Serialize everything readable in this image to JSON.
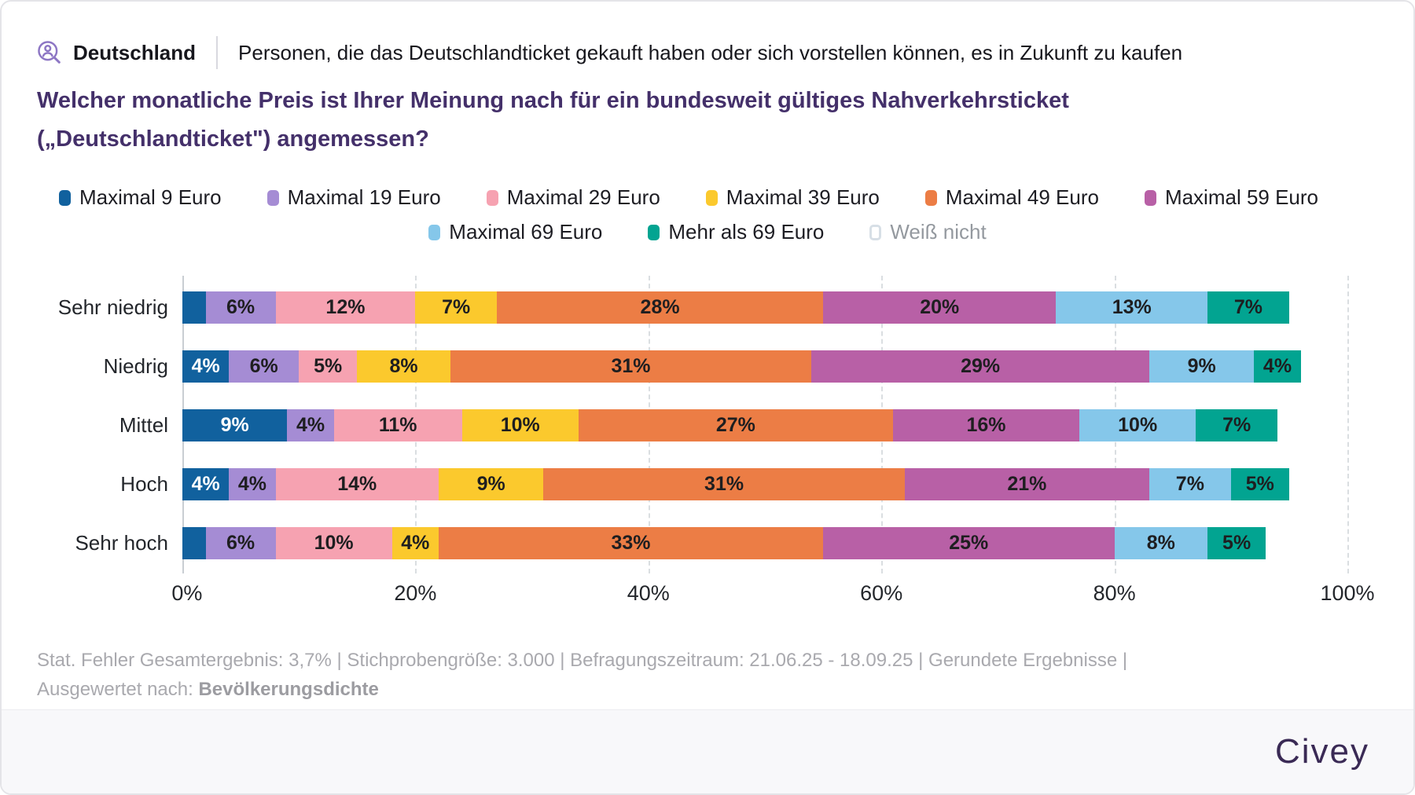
{
  "header": {
    "region": "Deutschland",
    "condition": "Personen, die das Deutschlandticket gekauft haben oder sich vorstellen können, es in Zukunft zu kaufen",
    "question": "Welcher monatliche Preis ist Ihrer Meinung nach für ein bundesweit gültiges Nahverkehrsticket („Deutschlandticket\") angemessen?",
    "audience_icon": "person-magnifier-icon",
    "icon_color": "#8d76c4"
  },
  "chart_data": {
    "type": "bar",
    "stacked": true,
    "orientation": "horizontal",
    "categories": [
      "Sehr niedrig",
      "Niedrig",
      "Mittel",
      "Hoch",
      "Sehr hoch"
    ],
    "series": [
      {
        "name": "Maximal 9 Euro",
        "color": "#11619E",
        "label_color": "#ffffff",
        "values": [
          2,
          4,
          9,
          4,
          2
        ]
      },
      {
        "name": "Maximal 19 Euro",
        "color": "#A58CD4",
        "label_color": "#1e1e20",
        "values": [
          6,
          6,
          4,
          4,
          6
        ]
      },
      {
        "name": "Maximal 29 Euro",
        "color": "#F6A2B1",
        "label_color": "#1e1e20",
        "values": [
          12,
          5,
          11,
          14,
          10
        ]
      },
      {
        "name": "Maximal 39 Euro",
        "color": "#FBC92D",
        "label_color": "#1e1e20",
        "values": [
          7,
          8,
          10,
          9,
          4
        ]
      },
      {
        "name": "Maximal 49 Euro",
        "color": "#EC7D45",
        "label_color": "#1e1e20",
        "values": [
          28,
          31,
          27,
          31,
          33
        ]
      },
      {
        "name": "Maximal 59 Euro",
        "color": "#B860A6",
        "label_color": "#1e1e20",
        "values": [
          20,
          29,
          16,
          21,
          25
        ]
      },
      {
        "name": "Maximal 69 Euro",
        "color": "#85C7EA",
        "label_color": "#1e1e20",
        "values": [
          13,
          9,
          10,
          7,
          8
        ]
      },
      {
        "name": "Mehr als 69 Euro",
        "color": "#02A491",
        "label_color": "#1e1e20",
        "values": [
          7,
          4,
          7,
          5,
          5
        ]
      },
      {
        "name": "Weiß nicht",
        "color": "#FFFFFF",
        "label_color": "#94999f",
        "values": [
          5,
          4,
          6,
          5,
          7
        ]
      }
    ],
    "x_ticks": [
      0,
      20,
      40,
      60,
      80,
      100
    ],
    "x_tick_suffix": "%",
    "xlim": [
      0,
      100
    ],
    "grid": "dashed-vertical",
    "legend_position": "top",
    "legend_rows": [
      6,
      3
    ],
    "label_threshold": 4,
    "value_suffix": "%"
  },
  "legend_style": {
    "knockout_series": "Weiß nicht",
    "knockout_swatch_border": "#d7dfe6",
    "knockout_text_color": "#94999f",
    "text_color": "#1d1d23"
  },
  "footer": {
    "meta": "Stat. Fehler Gesamtergebnis: 3,7% | Stichprobengröße: 3.000 | Befragungszeitraum: 21.06.25 - 18.09.25 | Gerundete Ergebnisse | Ausgewertet nach:",
    "grouped_by": "Bevölkerungsdichte"
  },
  "brand": "Civey"
}
